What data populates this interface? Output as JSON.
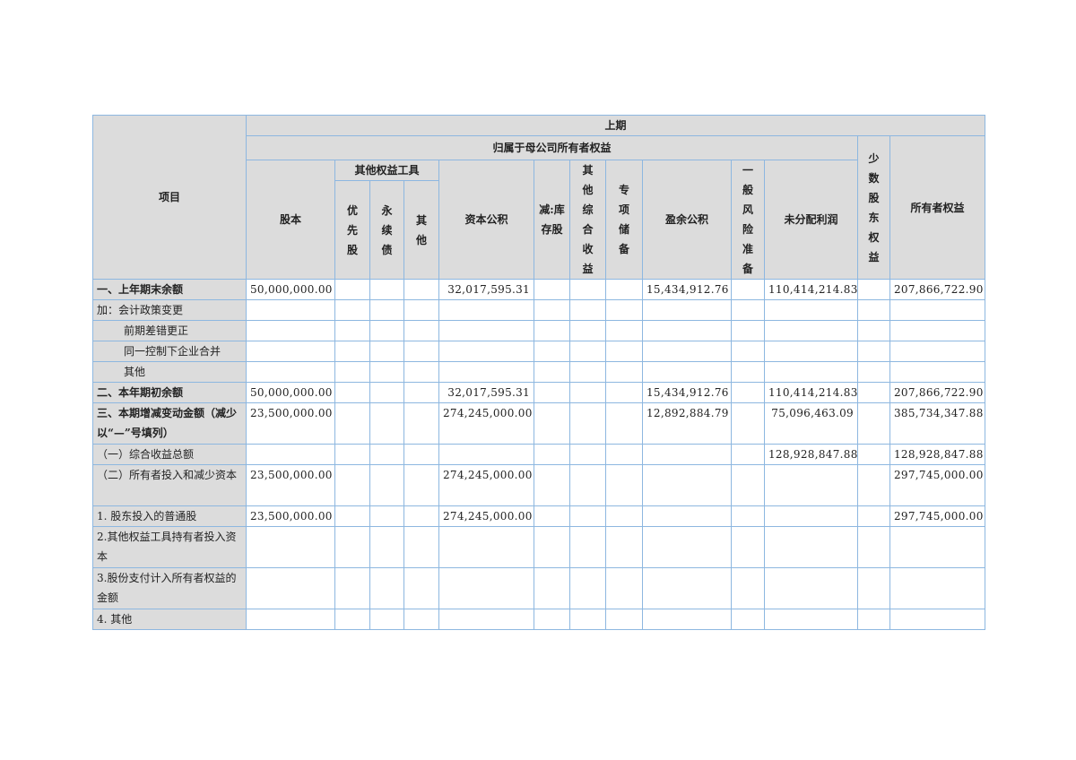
{
  "header": {
    "period": "上期",
    "item": "项目",
    "parent_equity": "归属于母公司所有者权益",
    "share_capital": "股本",
    "other_equity_tools": "其他权益工具",
    "preferred": "优先股",
    "perpetual": "永续债",
    "other_tool": "其他",
    "capital_reserve": "资本公积",
    "treasury": "减:库存股",
    "oci": "其他综合收益",
    "special_reserve": "专项储备",
    "surplus_reserve": "盈余公积",
    "general_risk": "一般风险准备",
    "retained": "未分配利润",
    "minority": "少数股东权益",
    "total_equity": "所有者权益"
  },
  "rows": [
    {
      "label": "一、上年期末余额",
      "bold": true,
      "indent": false,
      "tall": false,
      "values": [
        "50,000,000.00",
        "",
        "",
        "",
        "32,017,595.31",
        "",
        "",
        "",
        "15,434,912.76",
        "",
        "110,414,214.83",
        "",
        "207,866,722.90"
      ]
    },
    {
      "label": "加：会计政策变更",
      "bold": false,
      "indent": false,
      "tall": false,
      "values": [
        "",
        "",
        "",
        "",
        "",
        "",
        "",
        "",
        "",
        "",
        "",
        "",
        ""
      ]
    },
    {
      "label": "前期差错更正",
      "bold": false,
      "indent": true,
      "tall": false,
      "values": [
        "",
        "",
        "",
        "",
        "",
        "",
        "",
        "",
        "",
        "",
        "",
        "",
        ""
      ]
    },
    {
      "label": "同一控制下企业合并",
      "bold": false,
      "indent": true,
      "tall": false,
      "values": [
        "",
        "",
        "",
        "",
        "",
        "",
        "",
        "",
        "",
        "",
        "",
        "",
        ""
      ]
    },
    {
      "label": "其他",
      "bold": false,
      "indent": true,
      "tall": false,
      "values": [
        "",
        "",
        "",
        "",
        "",
        "",
        "",
        "",
        "",
        "",
        "",
        "",
        ""
      ]
    },
    {
      "label": "二、本年期初余额",
      "bold": true,
      "indent": false,
      "tall": false,
      "values": [
        "50,000,000.00",
        "",
        "",
        "",
        "32,017,595.31",
        "",
        "",
        "",
        "15,434,912.76",
        "",
        "110,414,214.83",
        "",
        "207,866,722.90"
      ]
    },
    {
      "label": "三、本期增减变动金额（减少以“—”号填列）",
      "bold": true,
      "indent": false,
      "tall": true,
      "values": [
        "23,500,000.00",
        "",
        "",
        "",
        "274,245,000.00",
        "",
        "",
        "",
        "12,892,884.79",
        "",
        "75,096,463.09",
        "",
        "385,734,347.88"
      ]
    },
    {
      "label": "（一）综合收益总额",
      "bold": false,
      "indent": false,
      "tall": false,
      "values": [
        "",
        "",
        "",
        "",
        "",
        "",
        "",
        "",
        "",
        "",
        "128,928,847.88",
        "",
        "128,928,847.88"
      ]
    },
    {
      "label": "（二）所有者投入和减少资本",
      "bold": false,
      "indent": false,
      "tall": true,
      "values": [
        "23,500,000.00",
        "",
        "",
        "",
        "274,245,000.00",
        "",
        "",
        "",
        "",
        "",
        "",
        "",
        "297,745,000.00"
      ]
    },
    {
      "label": "1. 股东投入的普通股",
      "bold": false,
      "indent": false,
      "tall": false,
      "values": [
        "23,500,000.00",
        "",
        "",
        "",
        "274,245,000.00",
        "",
        "",
        "",
        "",
        "",
        "",
        "",
        "297,745,000.00"
      ]
    },
    {
      "label": "2.其他权益工具持有者投入资本",
      "bold": false,
      "indent": false,
      "tall": true,
      "values": [
        "",
        "",
        "",
        "",
        "",
        "",
        "",
        "",
        "",
        "",
        "",
        "",
        ""
      ]
    },
    {
      "label": "3.股份支付计入所有者权益的金额",
      "bold": false,
      "indent": false,
      "tall": true,
      "values": [
        "",
        "",
        "",
        "",
        "",
        "",
        "",
        "",
        "",
        "",
        "",
        "",
        ""
      ]
    },
    {
      "label": "4. 其他",
      "bold": false,
      "indent": false,
      "tall": false,
      "values": [
        "",
        "",
        "",
        "",
        "",
        "",
        "",
        "",
        "",
        "",
        "",
        "",
        ""
      ]
    }
  ]
}
